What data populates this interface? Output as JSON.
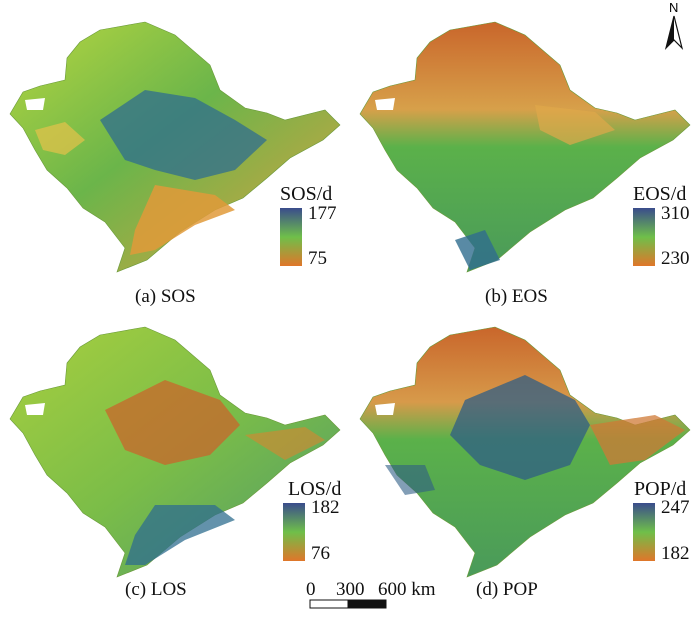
{
  "panels": [
    {
      "id": "sos",
      "caption": "(a) SOS",
      "legend_title": "SOS/d",
      "legend_max": "177",
      "legend_min": "75",
      "colors": {
        "base": "#7fbf3f",
        "high": "#2f6d8f",
        "low": "#e09a3a"
      }
    },
    {
      "id": "eos",
      "caption": "(b) EOS",
      "legend_title": "EOS/d",
      "legend_max": "310",
      "legend_min": "230",
      "colors": {
        "base": "#5bb14a",
        "high": "#2f6d8f",
        "low": "#c9662b"
      }
    },
    {
      "id": "los",
      "caption": "(c) LOS",
      "legend_title": "LOS/d",
      "legend_max": "182",
      "legend_min": "76",
      "colors": {
        "base": "#8cc63f",
        "high": "#2f6d8f",
        "low": "#c9662b"
      }
    },
    {
      "id": "pop",
      "caption": "(d) POP",
      "legend_title": "POP/d",
      "legend_max": "247",
      "legend_min": "182",
      "colors": {
        "base": "#5bb14a",
        "high": "#2f5e85",
        "low": "#cf7a35"
      }
    }
  ],
  "colorbar": {
    "top": "#3a4c8c",
    "mid": "#6fbf4a",
    "bottom": "#e0762a"
  },
  "scale_bar": {
    "labels": [
      "0",
      "300",
      "600 km"
    ]
  },
  "north_arrow": {
    "label": "N",
    "icon": "north-arrow-icon"
  }
}
